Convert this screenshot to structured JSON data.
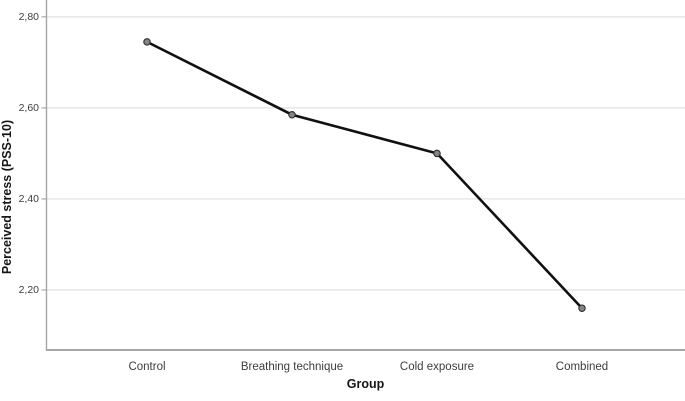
{
  "chart_data": {
    "type": "line",
    "title": "",
    "xlabel": "Group",
    "ylabel": "Perceived stress (PSS-10)",
    "categories": [
      "Control",
      "Breathing technique",
      "Cold exposure",
      "Combined"
    ],
    "values": [
      2.745,
      2.585,
      2.5,
      2.16
    ],
    "y_axis": {
      "ticks": [
        2.8,
        2.6,
        2.4,
        2.2
      ],
      "tick_labels": [
        "2,80",
        "2,60",
        "2,40",
        "2,20"
      ],
      "visible_min": 2.066,
      "visible_max": 2.837,
      "decimal_separator": ","
    },
    "x_axis": {
      "tick_labels": [
        "Control",
        "Breathing technique",
        "Cold exposure",
        "Combined"
      ]
    },
    "grid": "horizontal-only",
    "legend": "none",
    "frame": "left-and-bottom-axes, top and right cropped",
    "styles": {
      "background": "#ffffff",
      "line_color": "#111111",
      "marker_fill": "#858585",
      "marker_stroke": "#2e2e2e",
      "grid_color": "#e0e0e0",
      "axis_color": "#a6a6a6",
      "tick_text_color": "#3d3d3d",
      "title_text_color": "#161616"
    }
  }
}
